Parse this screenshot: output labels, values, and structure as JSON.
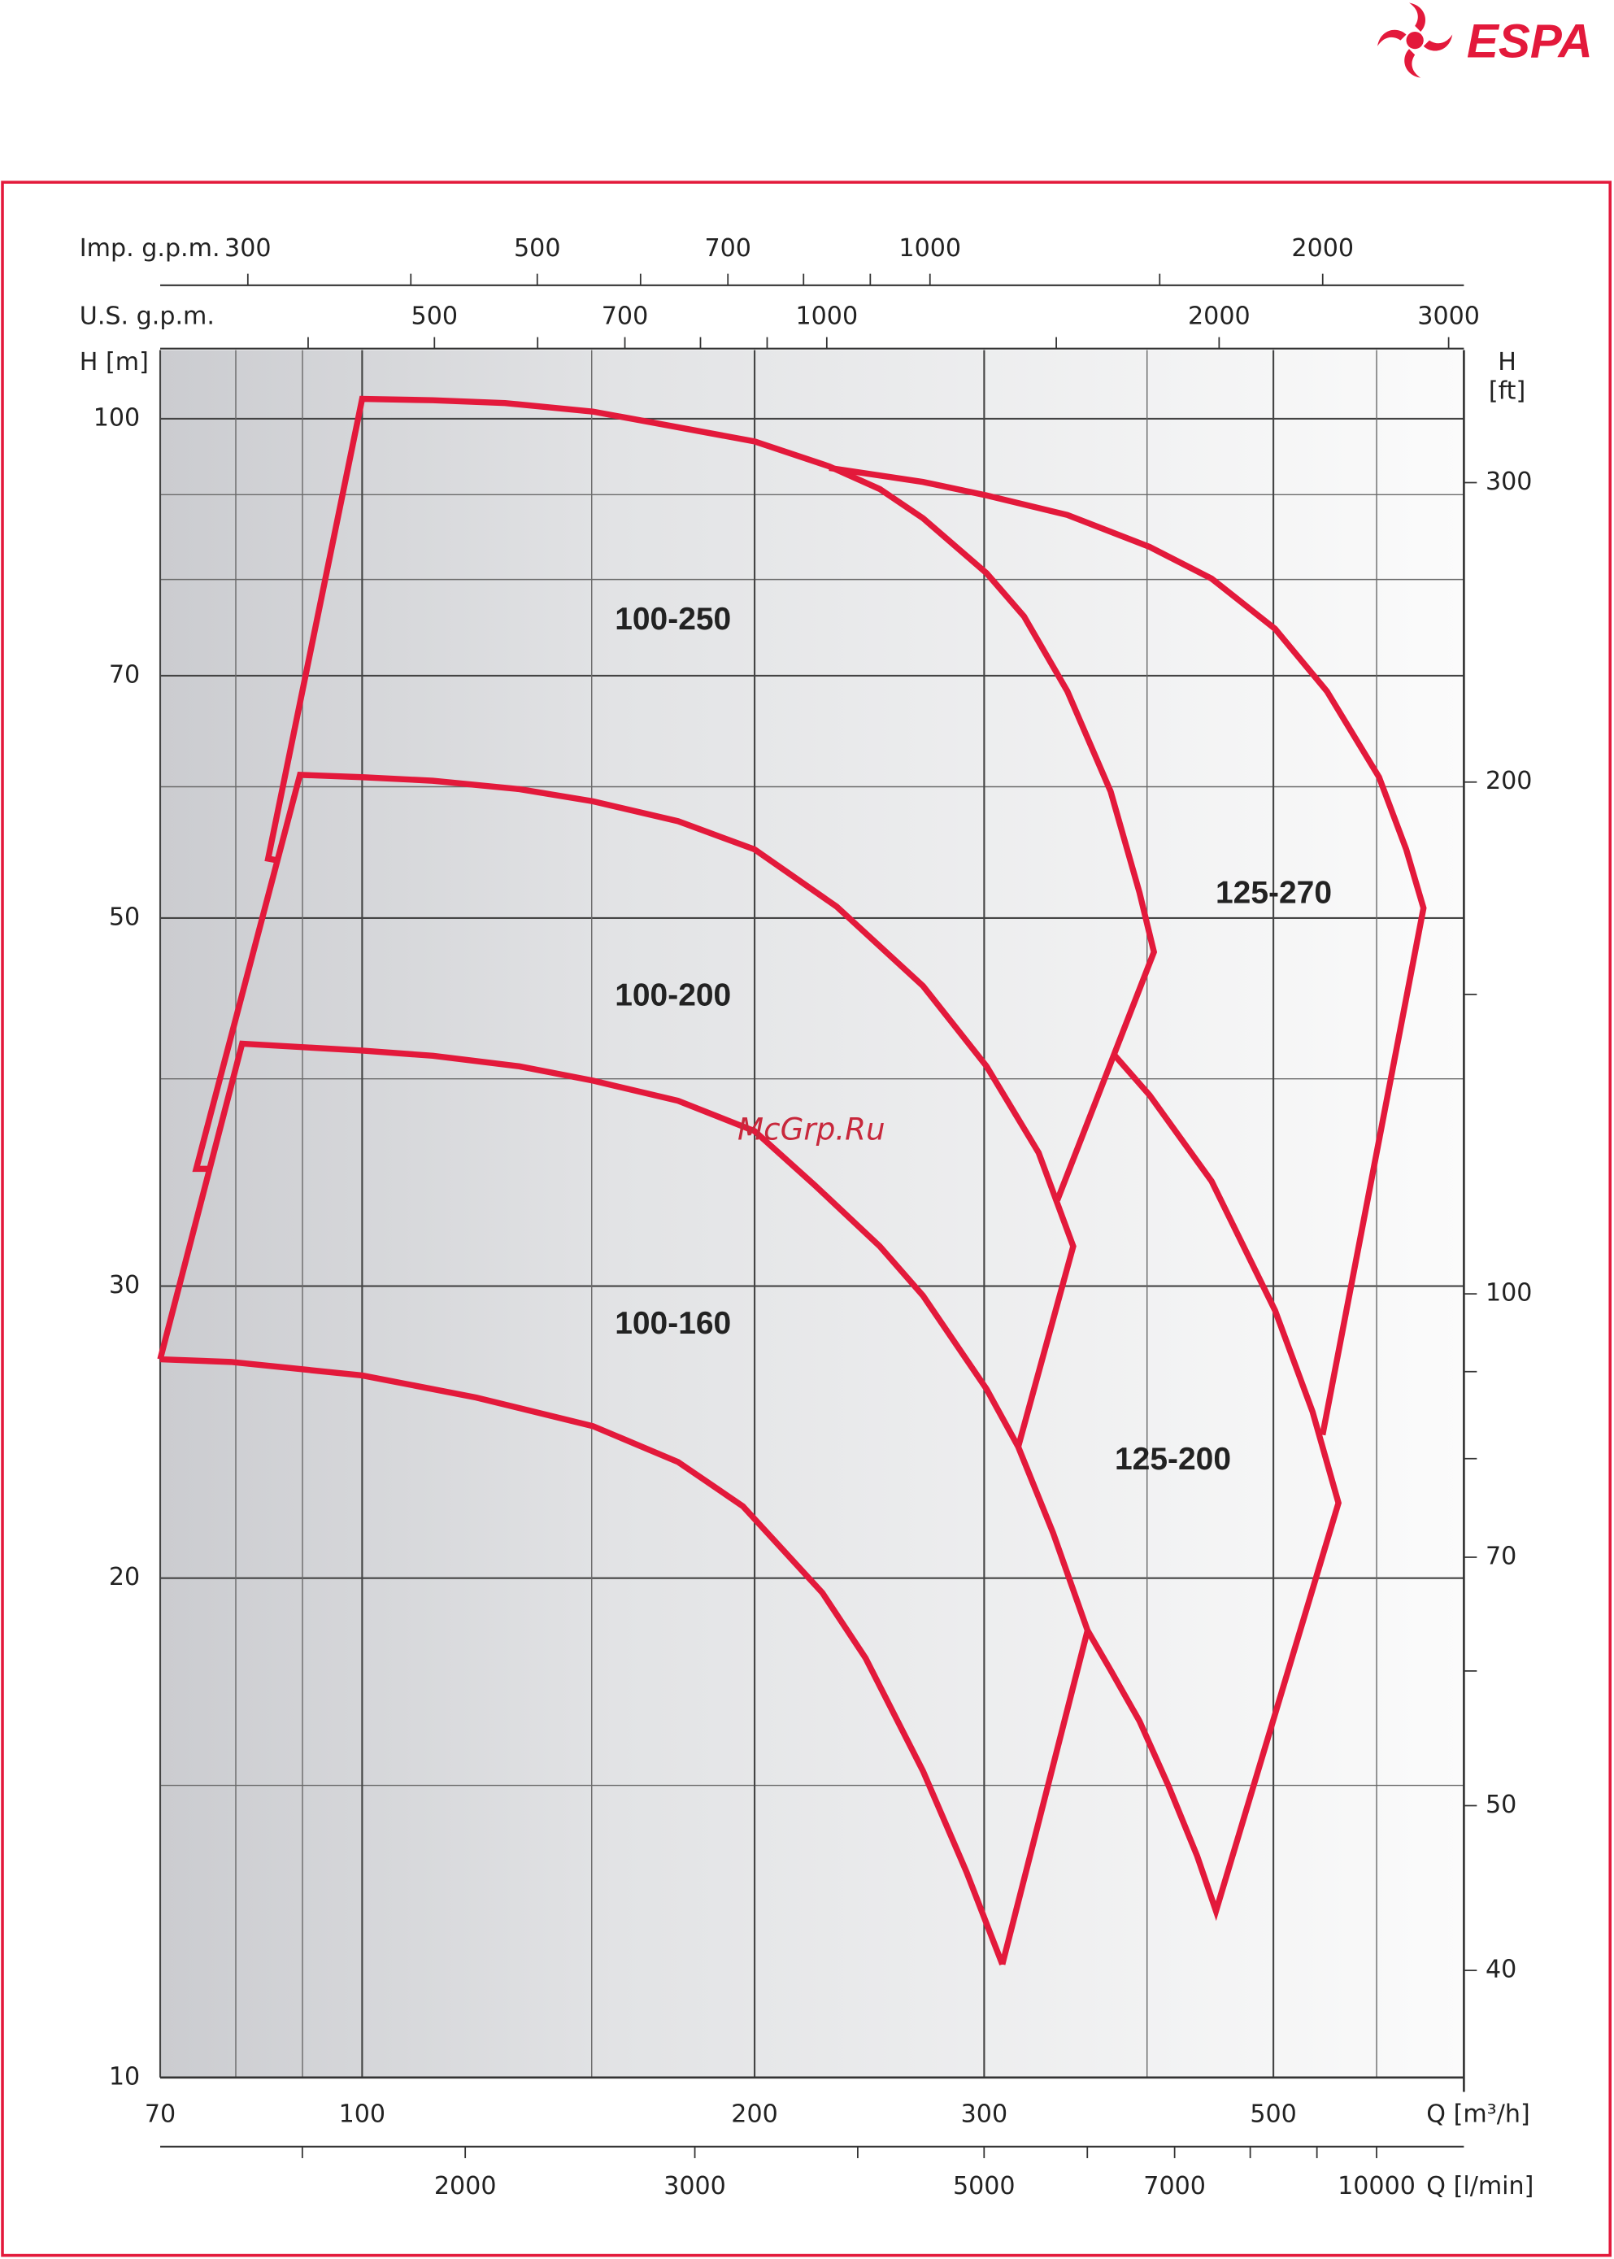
{
  "logo": "ESPA",
  "watermark": "McGrp.Ru",
  "chart_data": {
    "type": "line",
    "xlabel": "Q [m³/h]",
    "ylabel": "H [m]",
    "y2label": [
      "H",
      "[ft]"
    ],
    "x2label": "Q [l/min]",
    "x3label": "U.S. g.p.m.",
    "x4label": "Imp. g.p.m.",
    "log_x": true,
    "log_y": true,
    "grid": true,
    "xlim": [
      70,
      700
    ],
    "xticks": [
      70,
      100,
      200,
      300,
      500
    ],
    "xminor": [
      80,
      90,
      150,
      400,
      600
    ],
    "ylim": [
      10,
      110
    ],
    "yticks": [
      10,
      20,
      30,
      50,
      70,
      100
    ],
    "yminor": [
      15,
      40,
      60,
      80,
      90
    ],
    "y2lim": [
      34.6,
      359
    ],
    "y2ticks": [
      40,
      50,
      70,
      100,
      200,
      300
    ],
    "y2minor": [
      60,
      80,
      90,
      150
    ],
    "x2lim": [
      1167,
      11667
    ],
    "x2ticks": [
      2000,
      3000,
      5000,
      7000,
      10000
    ],
    "x2minor": [
      1500,
      4000,
      6000,
      8000,
      9000
    ],
    "x3lim": [
      308,
      3082
    ],
    "x3ticks": [
      500,
      700,
      1000,
      2000,
      3000
    ],
    "x3minor": [
      400,
      600,
      800,
      900,
      1500
    ],
    "x4lim": [
      257,
      2566
    ],
    "x4ticks": [
      300,
      500,
      700,
      1000,
      2000
    ],
    "x4minor": [
      400,
      600,
      800,
      900,
      1500
    ],
    "series": [
      {
        "name": "100-250",
        "color": "#e3193b",
        "x": [
          85.8,
          84.7,
          100,
          113.3,
          128.7,
          150.3,
          170.2,
          200,
          228.2,
          249.5,
          269.3,
          301.3,
          321.9,
          347.5,
          375.1,
          394.7,
          404.9,
          341.4
        ],
        "values": [
          54.2,
          54.3,
          102.8,
          102.6,
          102.2,
          101.0,
          99.2,
          96.9,
          93.6,
          90.7,
          87.1,
          80.7,
          76.0,
          68.5,
          59.6,
          51.8,
          47.7,
          33.8
        ]
      },
      {
        "name": "125-270",
        "color": "#e3193b",
        "x": [
          228.2,
          269.3,
          301.3,
          347.5,
          401.8,
          448.3,
          501.5,
          549.6,
          602.6,
          632.2,
          651.8,
          545.4
        ],
        "values": [
          93.4,
          91.6,
          89.9,
          87.5,
          83.7,
          80.1,
          74.7,
          68.5,
          60.8,
          55.0,
          50.7,
          24.4
        ]
      },
      {
        "name": "100-200",
        "color": "#e3193b",
        "x": [
          76.1,
          74.6,
          89.6,
          100,
          113.3,
          132.0,
          150.3,
          174.7,
          200,
          231.2,
          269.3,
          301.3,
          330.3,
          351.1,
          318.6
        ],
        "values": [
          35.3,
          35.3,
          61.0,
          60.8,
          60.5,
          59.8,
          58.8,
          57.2,
          55.0,
          50.8,
          45.5,
          40.7,
          36.1,
          31.7,
          24.0
        ]
      },
      {
        "name": "125-200",
        "color": "#e3193b",
        "x": [
          378.0,
          401.8,
          448.3,
          501.5,
          535.8,
          560.9,
          451.8,
          437.0,
          415.3,
          394.7,
          375.1,
          360.1
        ],
        "values": [
          41.3,
          39.1,
          34.7,
          29.0,
          25.2,
          22.2,
          12.6,
          13.6,
          15.0,
          16.4,
          17.6,
          18.6
        ]
      },
      {
        "name": "100-160",
        "color": "#e3193b",
        "x": [
          70.0,
          80.9,
          100,
          113.3,
          132.0,
          150.3,
          174.7,
          200,
          222.5,
          249.5,
          269.3,
          301.3,
          318.6,
          338.8,
          360.1,
          309.8,
          null,
          70.0,
          79.3,
          100,
          122.3,
          150.3,
          174.7,
          195.9,
          225.4,
          243.3,
          269.3,
          290.8,
          309.8
        ],
        "values": [
          27.1,
          42.0,
          41.6,
          41.3,
          40.7,
          39.9,
          38.8,
          37.2,
          34.5,
          31.7,
          29.6,
          26.0,
          24.0,
          21.3,
          18.6,
          11.7,
          null,
          27.1,
          27.0,
          26.5,
          25.7,
          24.7,
          23.5,
          22.1,
          19.6,
          17.9,
          15.3,
          13.3,
          11.7
        ]
      }
    ]
  }
}
